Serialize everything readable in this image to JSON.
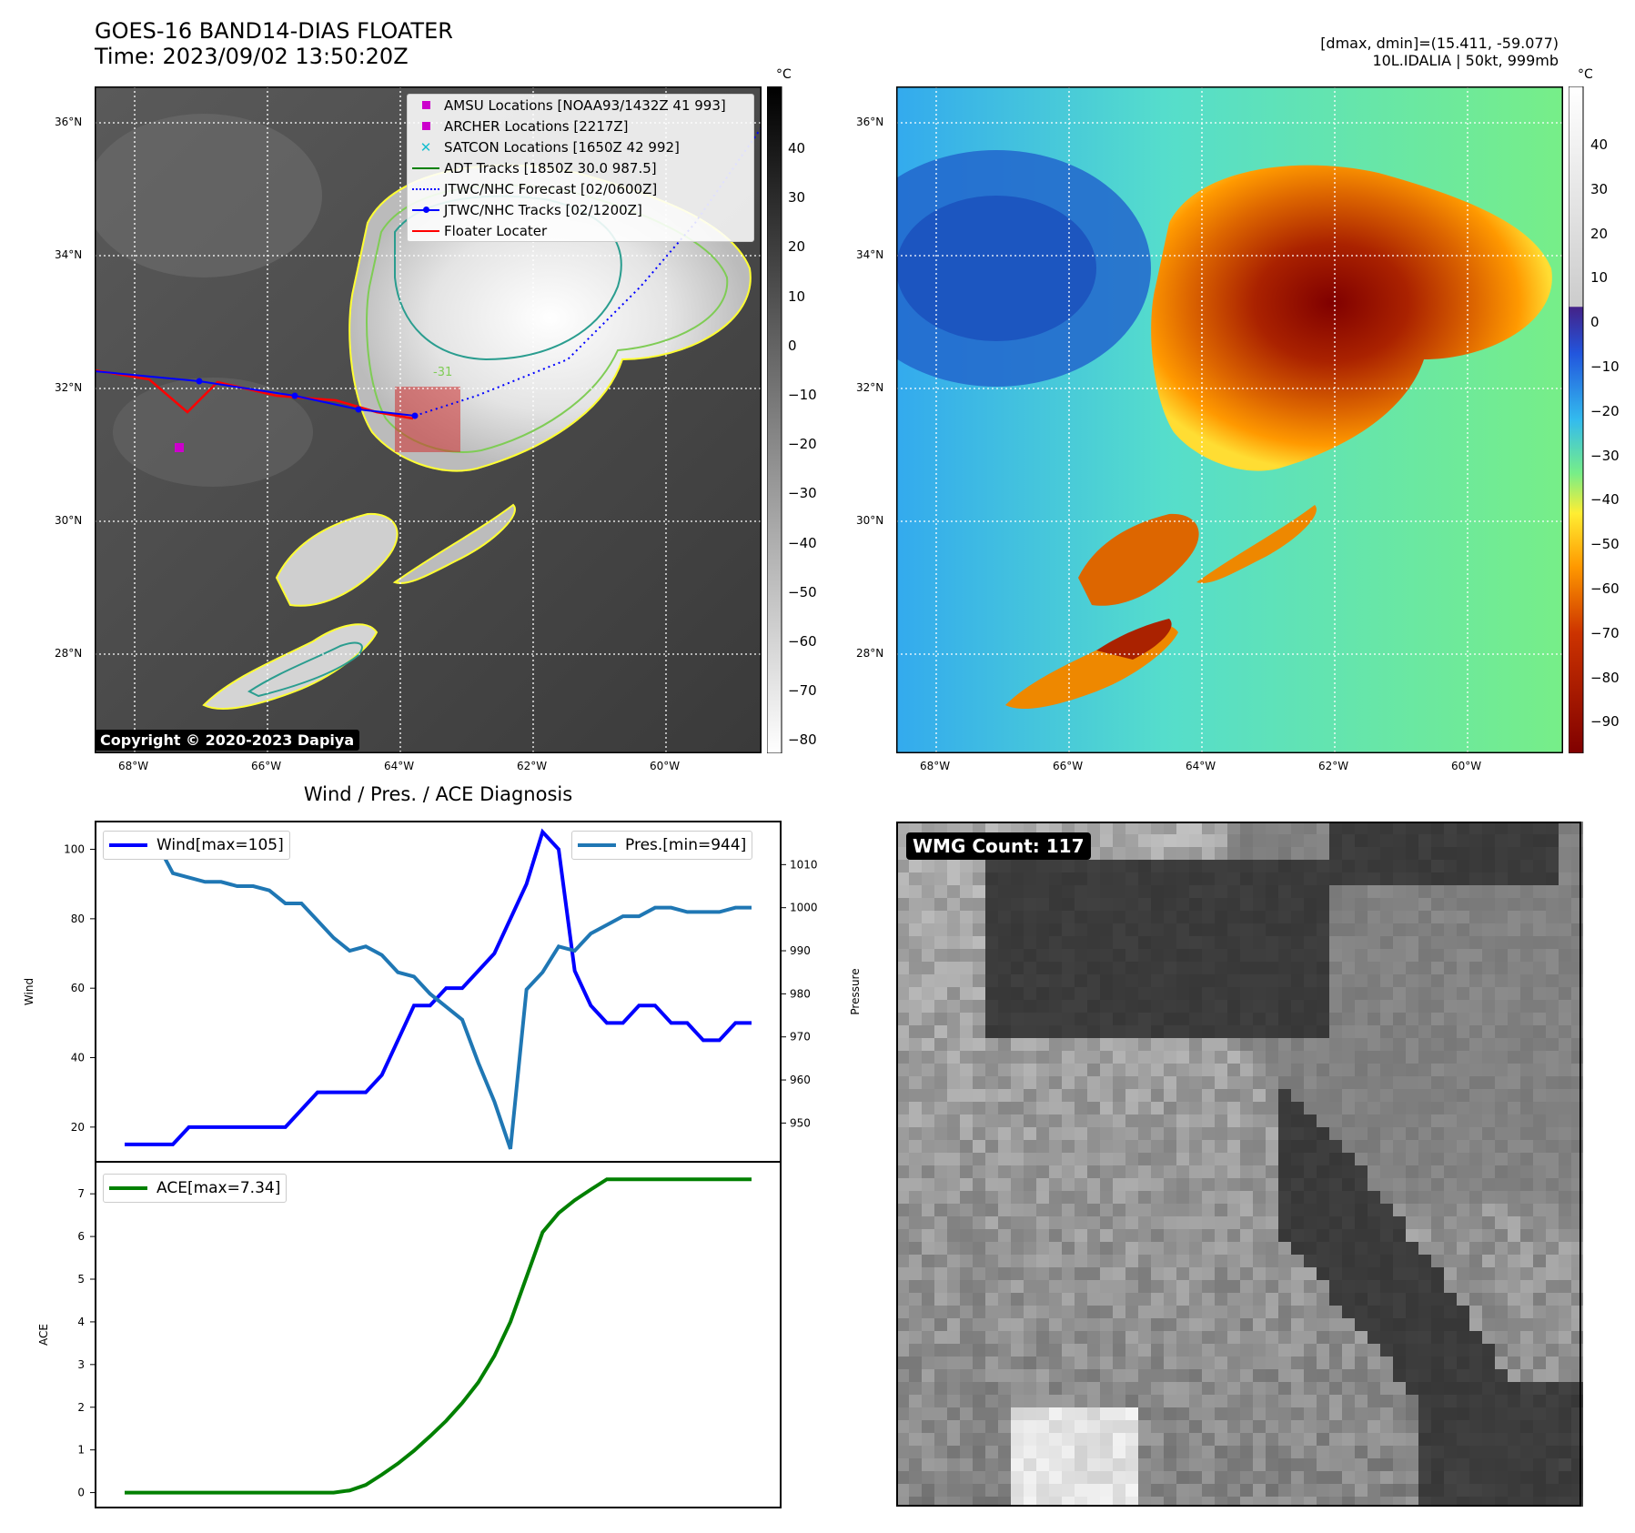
{
  "header": {
    "title_line1": "GOES-16 BAND14-DIAS FLOATER",
    "title_line2": "Time: 2023/09/02 13:50:20Z",
    "right_line1": "[dmax, dmin]=(15.411, -59.077)",
    "right_line2": "10L.IDALIA | 50kt, 999mb"
  },
  "maps": {
    "lon_labels": [
      "68°W",
      "66°W",
      "64°W",
      "62°W",
      "60°W"
    ],
    "lat_labels": [
      "36°N",
      "34°N",
      "32°N",
      "30°N",
      "28°N"
    ],
    "gray_colorbar": {
      "unit": "°C",
      "ticks": [
        "40",
        "30",
        "20",
        "10",
        "0",
        "−10",
        "−20",
        "−30",
        "−40",
        "−50",
        "−60",
        "−70",
        "−80"
      ]
    },
    "color_colorbar": {
      "unit": "°C",
      "ticks": [
        "40",
        "30",
        "20",
        "10",
        "0",
        "−10",
        "−20",
        "−30",
        "−40",
        "−50",
        "−60",
        "−70",
        "−80",
        "−90"
      ]
    },
    "legend": [
      {
        "label": "AMSU Locations [NOAA93/1432Z 41 993]",
        "icon": "magenta-square-icon",
        "color": "#cc00cc"
      },
      {
        "label": "ARCHER Locations [2217Z]",
        "icon": "magenta-square-icon",
        "color": "#cc00cc"
      },
      {
        "label": "SATCON Locations [1650Z 42 992]",
        "icon": "cyan-x-icon",
        "color": "#17becf"
      },
      {
        "label": "ADT Tracks [1850Z 30.0 987.5]",
        "icon": "green-line-icon",
        "color": "#008000"
      },
      {
        "label": "JTWC/NHC Forecast [02/0600Z]",
        "icon": "blue-dotted-line-icon",
        "color": "#0000ff"
      },
      {
        "label": "JTWC/NHC Tracks [02/1200Z]",
        "icon": "blue-line-dot-icon",
        "color": "#0000ff"
      },
      {
        "label": "Floater Locater",
        "icon": "red-line-icon",
        "color": "#ff0000"
      }
    ],
    "copyright": "Copyright © 2020-2023 Dapiya",
    "contour_label": "-31"
  },
  "wind_pres_title": "Wind / Pres. / ACE Diagnosis",
  "wmg": {
    "label": "WMG Count: 117"
  },
  "chart_data": [
    {
      "type": "line",
      "title": "Wind / Pres. / ACE Diagnosis",
      "ylabel": "Wind",
      "y2label": "Pressure",
      "ylim": [
        10,
        108
      ],
      "y2lim": [
        941,
        1020
      ],
      "yticks": [
        "20",
        "40",
        "60",
        "80",
        "100"
      ],
      "y2ticks": [
        "950",
        "960",
        "970",
        "980",
        "990",
        "1000",
        "1010"
      ],
      "series": [
        {
          "name": "Wind[max=105]",
          "axis": "left",
          "color": "#0000ff",
          "values": [
            15,
            15,
            15,
            15,
            20,
            20,
            20,
            20,
            20,
            20,
            20,
            25,
            30,
            30,
            30,
            30,
            35,
            45,
            55,
            55,
            60,
            60,
            65,
            70,
            80,
            90,
            105,
            100,
            65,
            55,
            50,
            50,
            55,
            55,
            50,
            50,
            45,
            45,
            50,
            50
          ]
        },
        {
          "name": "Pres.[min=944]",
          "axis": "right",
          "color": "#1f77b4",
          "values": [
            1015,
            1015,
            1015,
            1008,
            1007,
            1006,
            1006,
            1005,
            1005,
            1004,
            1001,
            1001,
            997,
            993,
            990,
            991,
            989,
            985,
            984,
            980,
            977,
            974,
            964,
            955,
            944,
            981,
            985,
            991,
            990,
            994,
            996,
            998,
            998,
            1000,
            1000,
            999,
            999,
            999,
            1000,
            1000
          ]
        }
      ]
    },
    {
      "type": "line",
      "ylabel": "ACE",
      "ylim": [
        -0.35,
        7.75
      ],
      "yticks": [
        "0",
        "1",
        "2",
        "3",
        "4",
        "5",
        "6",
        "7"
      ],
      "series": [
        {
          "name": "ACE[max=7.34]",
          "color": "#008000",
          "values": [
            0,
            0,
            0,
            0,
            0,
            0,
            0,
            0,
            0,
            0,
            0,
            0,
            0,
            0,
            0.05,
            0.18,
            0.42,
            0.68,
            0.98,
            1.32,
            1.68,
            2.1,
            2.58,
            3.2,
            4.0,
            5.05,
            6.1,
            6.55,
            6.85,
            7.1,
            7.34,
            7.34,
            7.34,
            7.34,
            7.34,
            7.34,
            7.34,
            7.34,
            7.34,
            7.34
          ]
        }
      ]
    }
  ]
}
